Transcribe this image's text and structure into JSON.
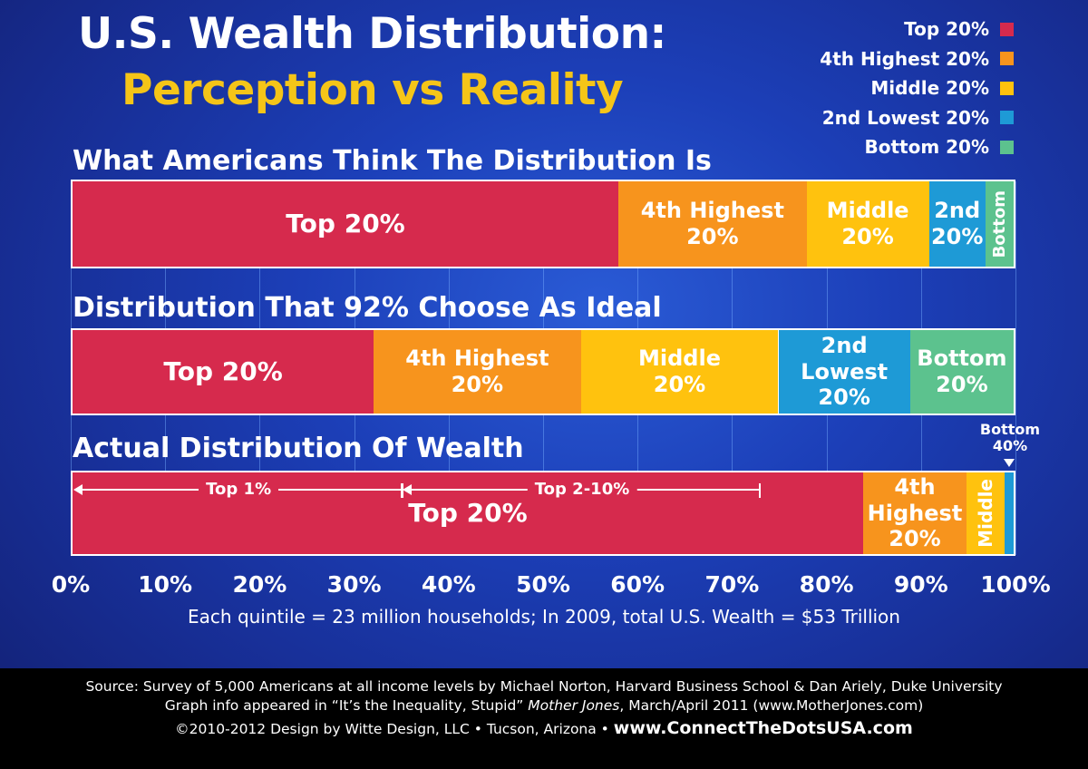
{
  "header": {
    "title_line1": "U.S. Wealth Distribution:",
    "title_line2": "Perception vs Reality"
  },
  "legend": [
    {
      "label": "Top 20%",
      "color": "#d62a4d"
    },
    {
      "label": "4th Highest 20%",
      "color": "#f7941d"
    },
    {
      "label": "Middle 20%",
      "color": "#ffc20e"
    },
    {
      "label": "2nd Lowest 20%",
      "color": "#1e9ad6"
    },
    {
      "label": "Bottom 20%",
      "color": "#5cc28e"
    }
  ],
  "chart_data": {
    "type": "bar",
    "orientation": "horizontal-stacked",
    "xlim": [
      0,
      100
    ],
    "x_unit": "%",
    "grid": true,
    "legend_position": "top-right",
    "categories": [
      "Top 20%",
      "4th Highest 20%",
      "Middle 20%",
      "2nd Lowest 20%",
      "Bottom 20%"
    ],
    "tick_labels": [
      "0%",
      "10%",
      "20%",
      "30%",
      "40%",
      "50%",
      "60%",
      "70%",
      "80%",
      "90%",
      "100%"
    ],
    "series": [
      {
        "name": "What Americans Think The Distribution Is",
        "segments": [
          {
            "label": "Top 20%",
            "value": 58,
            "vertical": false
          },
          {
            "label": "4th Highest\n20%",
            "value": 20,
            "vertical": false
          },
          {
            "label": "Middle\n20%",
            "value": 13,
            "vertical": false
          },
          {
            "label": "2nd\n20%",
            "value": 6,
            "vertical": false
          },
          {
            "label": "Bottom",
            "value": 3,
            "vertical": true
          }
        ]
      },
      {
        "name": "Distribution That 92% Choose As Ideal",
        "segments": [
          {
            "label": "Top 20%",
            "value": 32,
            "vertical": false
          },
          {
            "label": "4th Highest\n20%",
            "value": 22,
            "vertical": false
          },
          {
            "label": "Middle\n20%",
            "value": 21,
            "vertical": false
          },
          {
            "label": "2nd Lowest\n20%",
            "value": 14,
            "vertical": false
          },
          {
            "label": "Bottom\n20%",
            "value": 11,
            "vertical": false
          }
        ]
      },
      {
        "name": "Actual Distribution Of Wealth",
        "segments": [
          {
            "label": "Top 20%",
            "value": 84,
            "vertical": false
          },
          {
            "label": "4th\nHighest\n20%",
            "value": 11,
            "vertical": false
          },
          {
            "label": "Middle",
            "value": 4,
            "vertical": true
          },
          {
            "label": "",
            "value": 1,
            "vertical": false
          }
        ],
        "brackets": [
          {
            "label": "Top 1%",
            "from": 0,
            "to": 35
          },
          {
            "label": "Top 2-10%",
            "from": 35,
            "to": 73
          }
        ],
        "callout": {
          "label": "Bottom\n40%",
          "at": 99.7
        }
      }
    ],
    "note": "Each quintile = 23 million households;  In 2009, total U.S. Wealth = $53 Trillion"
  },
  "footer": {
    "line1": "Source:  Survey of 5,000 Americans at all income levels by Michael Norton, Harvard Business School & Dan Ariely, Duke University",
    "line2_pre": "Graph info appeared in “It’s the Inequality, Stupid” ",
    "line2_italic": "Mother Jones",
    "line2_post": ", March/April 2011 (www.MotherJones.com)",
    "line3_pre": "©2010-2012 Design by Witte Design, LLC • Tucson, Arizona  • ",
    "line3_site": "www.ConnectTheDotsUSA.com"
  }
}
